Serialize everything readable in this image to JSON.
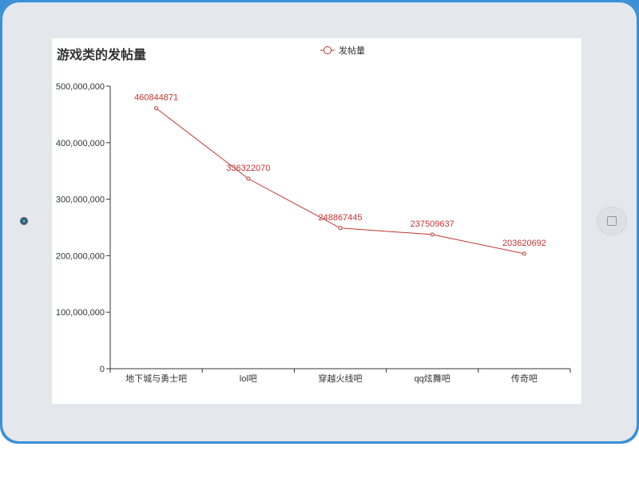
{
  "chart_data": {
    "type": "line",
    "title": "游戏类的发帖量",
    "categories": [
      "地下城与勇士吧",
      "lol吧",
      "穿越火线吧",
      "qq炫舞吧",
      "传奇吧"
    ],
    "series": [
      {
        "name": "发帖量",
        "values": [
          460844871,
          336322070,
          248867445,
          237509637,
          203620692
        ],
        "data_labels": [
          "460844871",
          "336322070",
          "248867445",
          "237509637",
          "203620692"
        ]
      }
    ],
    "ylim": [
      0,
      500000000
    ],
    "yticks": [
      0,
      100000000,
      200000000,
      300000000,
      400000000,
      500000000
    ],
    "ytick_labels": [
      "0",
      "100,000,000",
      "200,000,000",
      "300,000,000",
      "400,000,000",
      "500,000,000"
    ],
    "grid": false,
    "legend_position": "top-center",
    "colors": {
      "series": "#c23531",
      "axis": "#333333"
    }
  },
  "device": {
    "icons": {
      "camera": "camera-icon",
      "home": "home-button-icon"
    }
  }
}
